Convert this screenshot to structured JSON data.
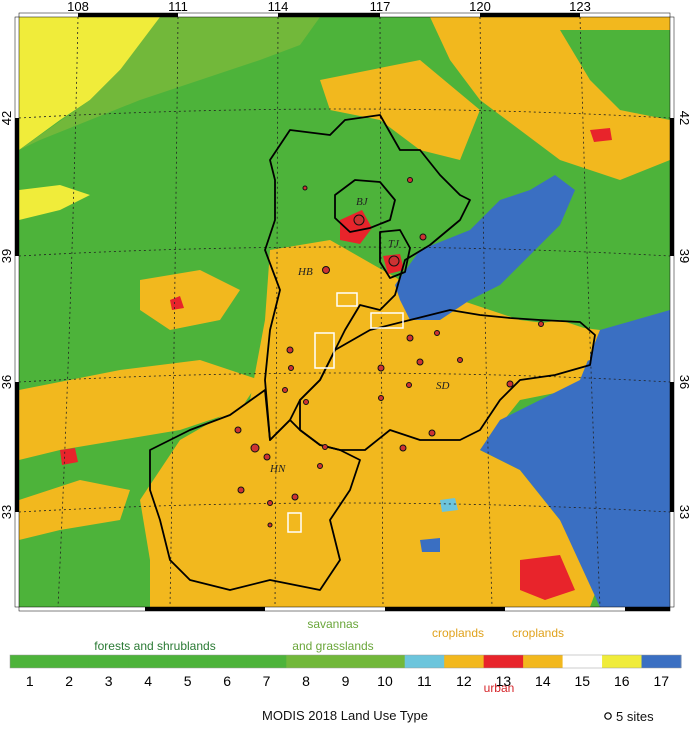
{
  "title": "MODIS 2018 Land Use Type",
  "site_scale_label": "5 sites",
  "longitude_ticks": [
    "108",
    "111",
    "114",
    "117",
    "120",
    "123"
  ],
  "latitude_ticks": [
    "42",
    "39",
    "36",
    "33"
  ],
  "provinces": {
    "bj": "BJ",
    "tj": "TJ",
    "hb": "HB",
    "sd": "SD",
    "hn": "HN"
  },
  "categories": {
    "forests": "forests and shrublands",
    "savannas_1": "savannas",
    "savannas_2": "and grasslands",
    "croplands_a": "croplands",
    "croplands_b": "croplands",
    "urban": "urban"
  },
  "legend": {
    "classes": [
      {
        "value": "1",
        "color": "#4db33a"
      },
      {
        "value": "2",
        "color": "#4db33a"
      },
      {
        "value": "3",
        "color": "#4db33a"
      },
      {
        "value": "4",
        "color": "#4db33a"
      },
      {
        "value": "5",
        "color": "#4db33a"
      },
      {
        "value": "6",
        "color": "#4db33a"
      },
      {
        "value": "7",
        "color": "#4db33a"
      },
      {
        "value": "8",
        "color": "#72b83a"
      },
      {
        "value": "9",
        "color": "#72b83a"
      },
      {
        "value": "10",
        "color": "#72b83a"
      },
      {
        "value": "11",
        "color": "#6cc5dc"
      },
      {
        "value": "12",
        "color": "#f2b81e"
      },
      {
        "value": "13",
        "color": "#e8242b"
      },
      {
        "value": "14",
        "color": "#f2b81e"
      },
      {
        "value": "15",
        "color": "#ffffff"
      },
      {
        "value": "16",
        "color": "#f0ec3a"
      },
      {
        "value": "17",
        "color": "#3a6fc2"
      }
    ]
  },
  "colors": {
    "forest": "#4db33a",
    "savanna": "#72b83a",
    "cropland": "#f2b81e",
    "urban": "#e8242b",
    "water": "#3a6fc2",
    "barren": "#f0ec3a",
    "wetland": "#6cc5dc",
    "forest_label": "#2a7a34",
    "savanna_label": "#6aa63a",
    "cropland_label": "#e0a21c",
    "urban_label": "#d6262b"
  }
}
